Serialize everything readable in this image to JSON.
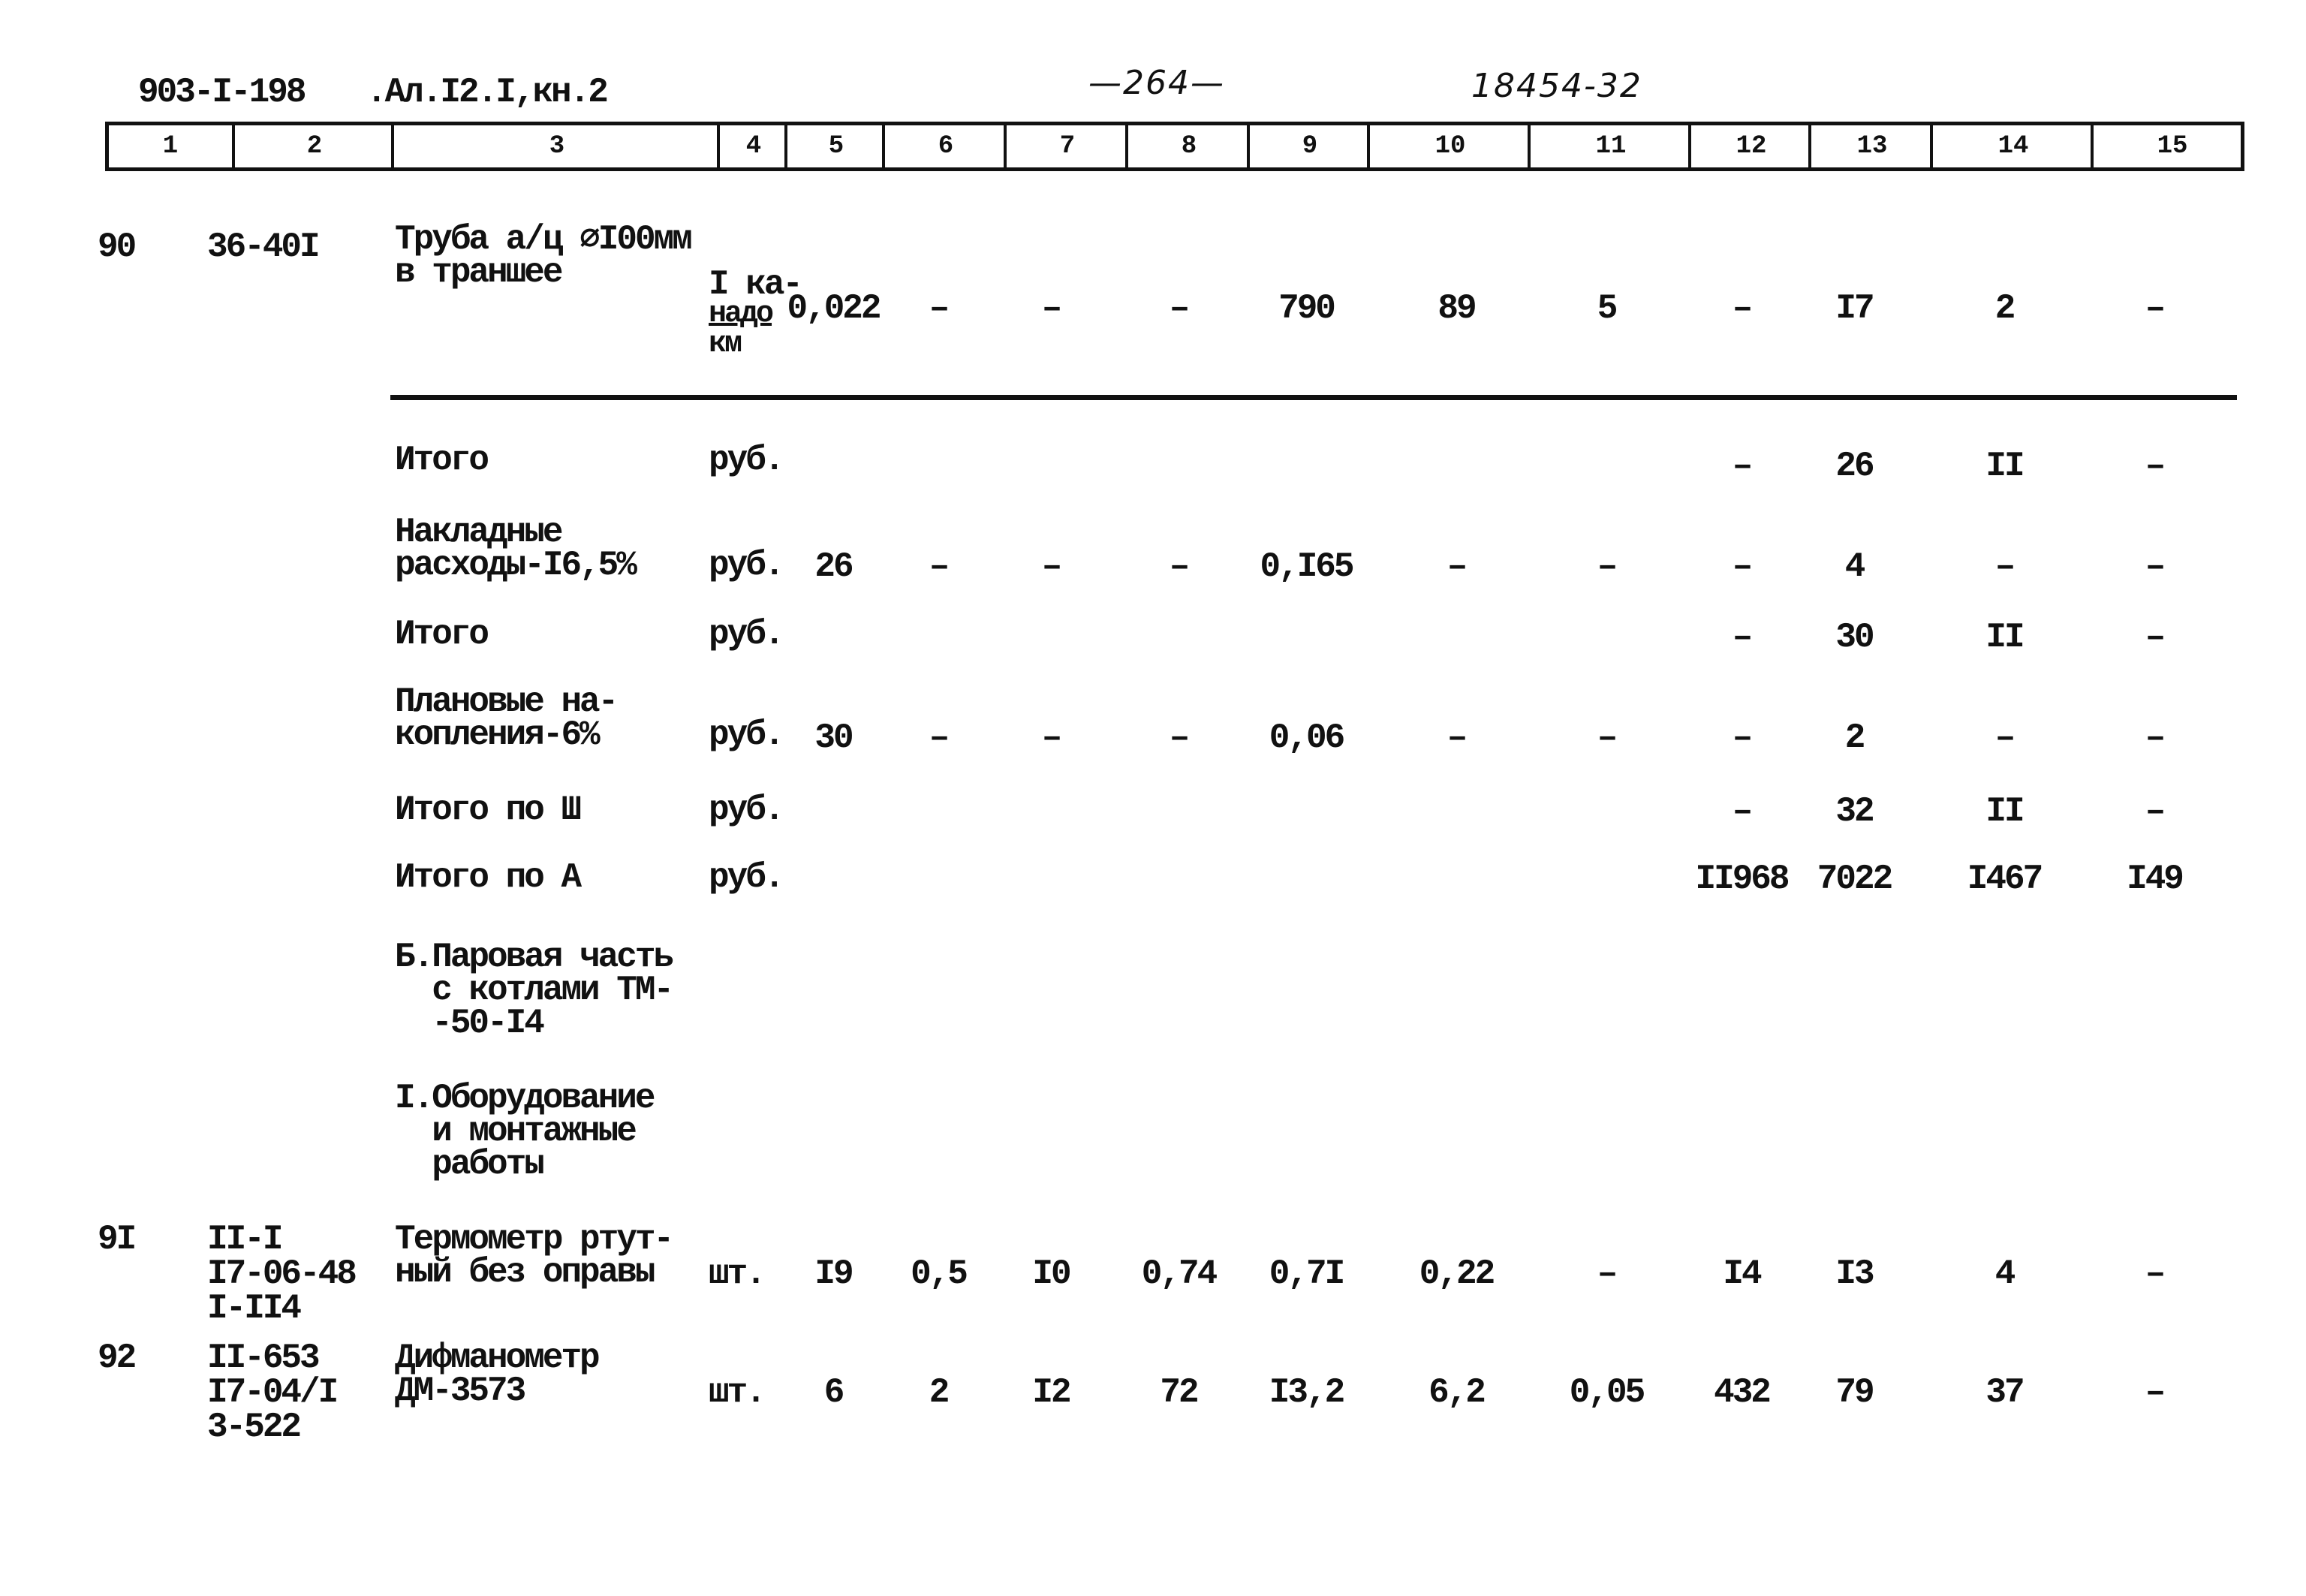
{
  "header": {
    "code": "903-I-198",
    "album": ".Ал.I2.I,кн.2",
    "page": "—264—",
    "doc_number": "18454-32"
  },
  "columns": [
    "1",
    "2",
    "3",
    "4",
    "5",
    "6",
    "7",
    "8",
    "9",
    "10",
    "11",
    "12",
    "13",
    "14",
    "15"
  ],
  "rows": [
    {
      "num": "90",
      "code": [
        "36-40I"
      ],
      "name": [
        "Труба а/ц ∅I00мм",
        "в траншее"
      ],
      "unit": [
        "I ка-",
        "надо",
        "км"
      ],
      "values": [
        "0,022",
        "–",
        "–",
        "–",
        "790",
        "89",
        "5",
        "–",
        "I7",
        "2",
        "–"
      ]
    },
    {
      "name": [
        "Итого"
      ],
      "unit": [
        "руб."
      ],
      "values": [
        "",
        "",
        "",
        "",
        "",
        "",
        "",
        "–",
        "26",
        "II",
        "–"
      ]
    },
    {
      "name": [
        "Накладные",
        "расходы-I6,5%"
      ],
      "unit": [
        "руб."
      ],
      "values": [
        "26",
        "–",
        "–",
        "–",
        "0,I65",
        "–",
        "–",
        "–",
        "4",
        "–",
        "–"
      ]
    },
    {
      "name": [
        "Итого"
      ],
      "unit": [
        "руб."
      ],
      "values": [
        "",
        "",
        "",
        "",
        "",
        "",
        "",
        "–",
        "30",
        "II",
        "–"
      ]
    },
    {
      "name": [
        "Плановые на-",
        "копления-6%"
      ],
      "unit": [
        "руб."
      ],
      "values": [
        "30",
        "–",
        "–",
        "–",
        "0,06",
        "–",
        "–",
        "–",
        "2",
        "–",
        "–"
      ]
    },
    {
      "name": [
        "Итого по Ш"
      ],
      "unit": [
        "руб."
      ],
      "values": [
        "",
        "",
        "",
        "",
        "",
        "",
        "",
        "–",
        "32",
        "II",
        "–"
      ]
    },
    {
      "name": [
        "Итого по А"
      ],
      "unit": [
        "руб."
      ],
      "values": [
        "",
        "",
        "",
        "",
        "",
        "",
        "",
        "II968",
        "7022",
        "I467",
        "I49"
      ]
    },
    {
      "name": [
        "Б.Паровая часть",
        "  с котлами ТМ-",
        "  -50-I4"
      ]
    },
    {
      "name": [
        "I.Оборудование",
        "  и монтажные",
        "  работы"
      ]
    },
    {
      "num": "9I",
      "code": [
        "II-I",
        "I7-06-48",
        "I-II4"
      ],
      "name": [
        "Термометр ртут-",
        "ный без оправы"
      ],
      "unit": [
        "шт."
      ],
      "values": [
        "I9",
        "0,5",
        "I0",
        "0,74",
        "0,7I",
        "0,22",
        "–",
        "I4",
        "I3",
        "4",
        "–"
      ]
    },
    {
      "num": "92",
      "code": [
        "II-653",
        "I7-04/I",
        "3-522"
      ],
      "name": [
        "Дифманометр",
        "ДМ-3573"
      ],
      "unit": [
        "шт."
      ],
      "values": [
        "6",
        "2",
        "I2",
        "72",
        "I3,2",
        "6,2",
        "0,05",
        "432",
        "79",
        "37",
        "–"
      ]
    }
  ]
}
